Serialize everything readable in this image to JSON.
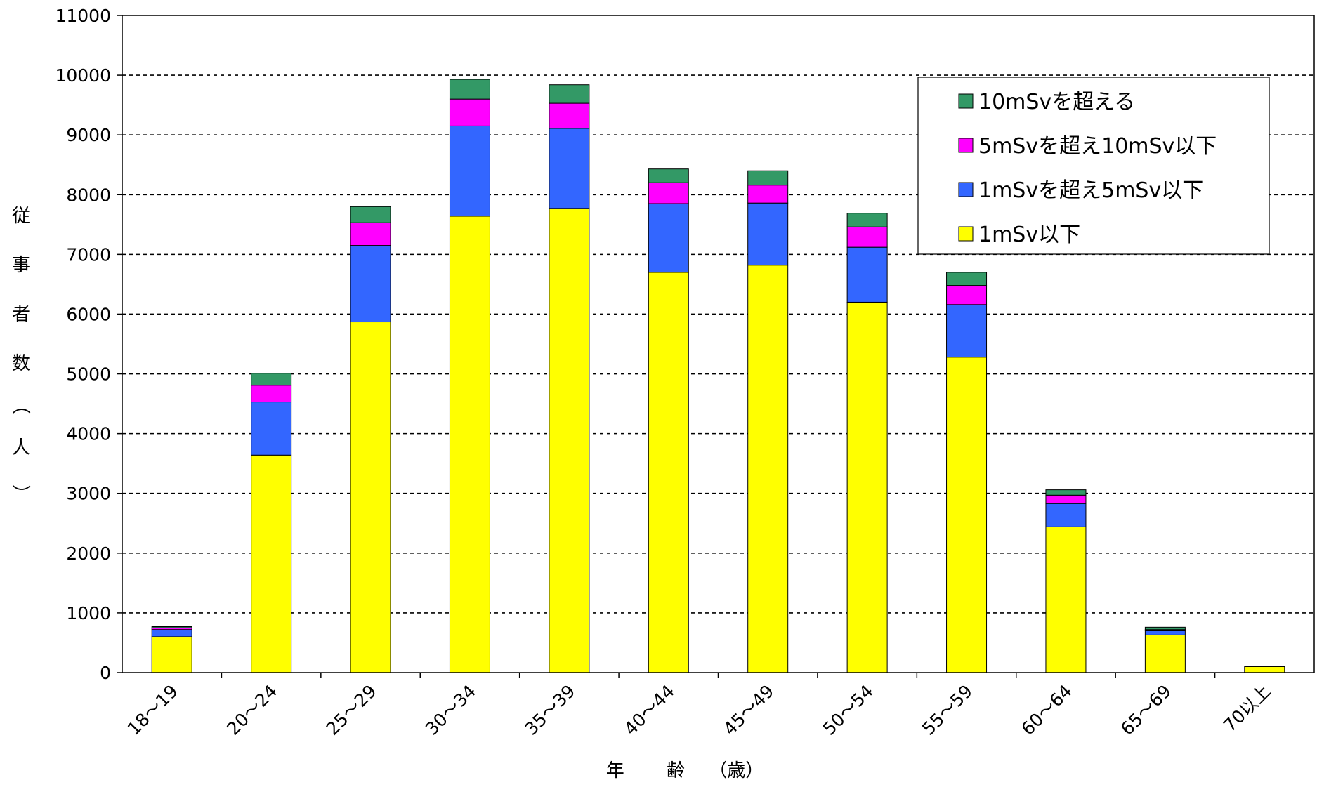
{
  "chart_data": {
    "type": "bar",
    "stacked": true,
    "title": "",
    "xlabel": "年　　 齢　 （歳）",
    "ylabel": "従事者数（人）",
    "ylim": [
      0,
      11000
    ],
    "yticks": [
      0,
      1000,
      2000,
      3000,
      4000,
      5000,
      6000,
      7000,
      8000,
      9000,
      10000,
      11000
    ],
    "grid": "horizontal-dashed",
    "legend_position": "top-right",
    "categories": [
      "18～19",
      "20～24",
      "25～29",
      "30～34",
      "35～39",
      "40～44",
      "45～49",
      "50～54",
      "55～59",
      "60～64",
      "65～69",
      "70以上"
    ],
    "series": [
      {
        "name": "1mSv以下",
        "color": "#ffff00",
        "values": [
          600,
          3640,
          5870,
          7640,
          7770,
          6700,
          6820,
          6200,
          5280,
          2440,
          630,
          100
        ]
      },
      {
        "name": "1mSvを超え5mSv以下",
        "color": "#3366ff",
        "values": [
          120,
          890,
          1280,
          1510,
          1340,
          1150,
          1040,
          920,
          880,
          390,
          70,
          0
        ]
      },
      {
        "name": "5mSvを超え10mSv以下",
        "color": "#ff00ff",
        "values": [
          30,
          280,
          380,
          450,
          420,
          350,
          300,
          340,
          320,
          140,
          20,
          0
        ]
      },
      {
        "name": "10mSvを超える",
        "color": "#339966",
        "values": [
          20,
          200,
          270,
          330,
          310,
          230,
          240,
          230,
          220,
          90,
          40,
          0
        ]
      }
    ],
    "legend_order": [
      "10mSvを超える",
      "5mSvを超え10mSv以下",
      "1mSvを超え5mSv以下",
      "1mSv以下"
    ]
  }
}
